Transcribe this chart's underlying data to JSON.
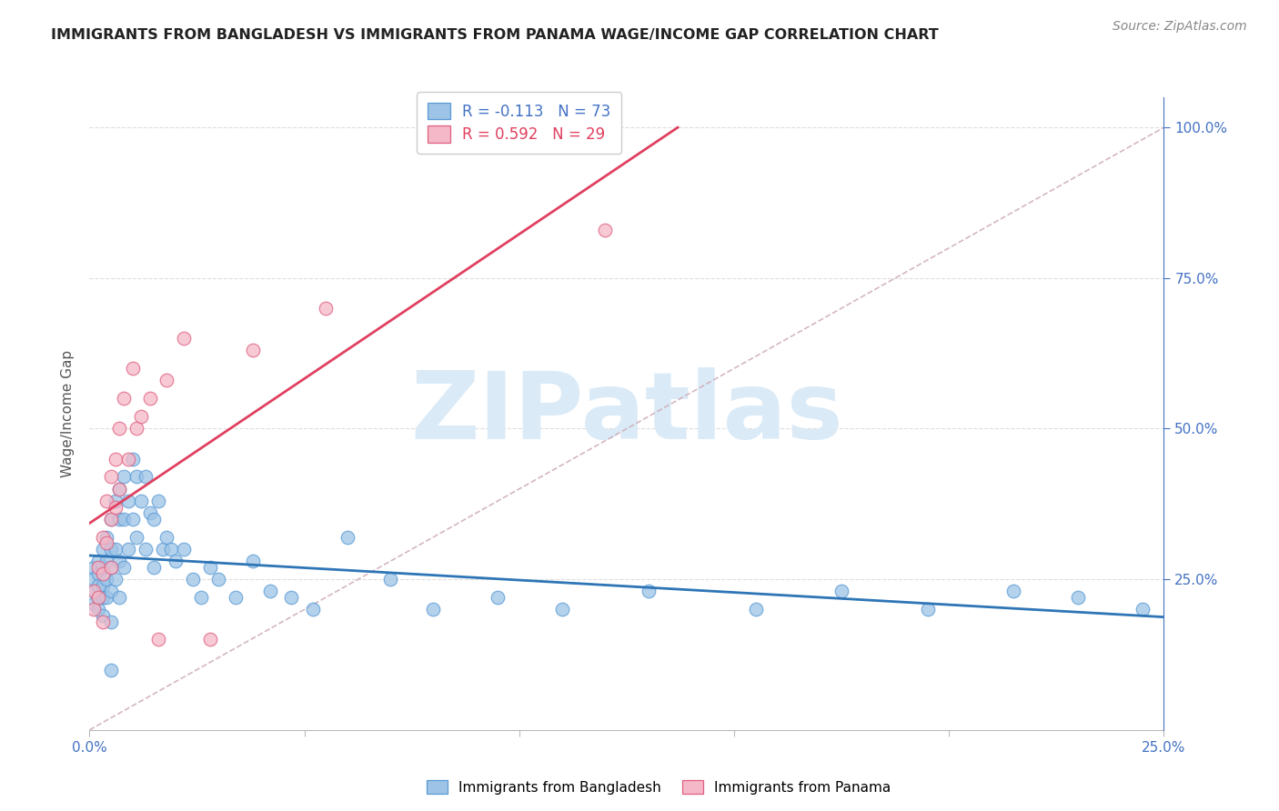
{
  "title": "IMMIGRANTS FROM BANGLADESH VS IMMIGRANTS FROM PANAMA WAGE/INCOME GAP CORRELATION CHART",
  "source": "Source: ZipAtlas.com",
  "ylabel": "Wage/Income Gap",
  "right_ytick_labels": [
    "100.0%",
    "75.0%",
    "50.0%",
    "25.0%"
  ],
  "right_ytick_values": [
    1.0,
    0.75,
    0.5,
    0.25
  ],
  "xlim": [
    0.0,
    0.25
  ],
  "ylim": [
    0.0,
    1.05
  ],
  "legend_bd": "R = -0.113   N = 73",
  "legend_pa": "R = 0.592   N = 29",
  "watermark": "ZIPatlas",
  "bg_color": "#ffffff",
  "grid_color": "#dddddd",
  "bangladesh_face": "#9dc3e6",
  "bangladesh_edge": "#5b9bd5",
  "panama_face": "#f4b8c8",
  "panama_edge": "#e06080",
  "trend_bd_color": "#2e75b6",
  "trend_pa_color": "#e04060",
  "ref_color": "#d0b0b8",
  "right_axis_color": "#4472c4",
  "watermark_color": "#daeaf7",
  "bd_x": [
    0.001,
    0.001,
    0.001,
    0.001,
    0.002,
    0.002,
    0.002,
    0.002,
    0.002,
    0.003,
    0.003,
    0.003,
    0.003,
    0.003,
    0.004,
    0.004,
    0.004,
    0.004,
    0.005,
    0.005,
    0.005,
    0.005,
    0.005,
    0.006,
    0.006,
    0.006,
    0.007,
    0.007,
    0.007,
    0.007,
    0.008,
    0.008,
    0.008,
    0.009,
    0.009,
    0.01,
    0.01,
    0.011,
    0.011,
    0.012,
    0.013,
    0.013,
    0.014,
    0.015,
    0.015,
    0.016,
    0.017,
    0.018,
    0.019,
    0.02,
    0.022,
    0.024,
    0.026,
    0.028,
    0.03,
    0.034,
    0.038,
    0.042,
    0.047,
    0.052,
    0.06,
    0.07,
    0.08,
    0.095,
    0.11,
    0.13,
    0.155,
    0.175,
    0.195,
    0.215,
    0.23,
    0.245,
    0.005
  ],
  "bd_y": [
    0.27,
    0.25,
    0.23,
    0.21,
    0.28,
    0.26,
    0.24,
    0.22,
    0.2,
    0.3,
    0.27,
    0.24,
    0.22,
    0.19,
    0.32,
    0.28,
    0.25,
    0.22,
    0.35,
    0.3,
    0.27,
    0.23,
    0.18,
    0.38,
    0.3,
    0.25,
    0.4,
    0.35,
    0.28,
    0.22,
    0.42,
    0.35,
    0.27,
    0.38,
    0.3,
    0.45,
    0.35,
    0.42,
    0.32,
    0.38,
    0.42,
    0.3,
    0.36,
    0.35,
    0.27,
    0.38,
    0.3,
    0.32,
    0.3,
    0.28,
    0.3,
    0.25,
    0.22,
    0.27,
    0.25,
    0.22,
    0.28,
    0.23,
    0.22,
    0.2,
    0.32,
    0.25,
    0.2,
    0.22,
    0.2,
    0.23,
    0.2,
    0.23,
    0.2,
    0.23,
    0.22,
    0.2,
    0.1
  ],
  "pa_x": [
    0.001,
    0.001,
    0.002,
    0.002,
    0.003,
    0.003,
    0.003,
    0.004,
    0.004,
    0.005,
    0.005,
    0.005,
    0.006,
    0.006,
    0.007,
    0.007,
    0.008,
    0.009,
    0.01,
    0.011,
    0.012,
    0.014,
    0.016,
    0.018,
    0.022,
    0.028,
    0.038,
    0.055,
    0.12
  ],
  "pa_y": [
    0.23,
    0.2,
    0.27,
    0.22,
    0.32,
    0.26,
    0.18,
    0.38,
    0.31,
    0.42,
    0.35,
    0.27,
    0.45,
    0.37,
    0.5,
    0.4,
    0.55,
    0.45,
    0.6,
    0.5,
    0.52,
    0.55,
    0.15,
    0.58,
    0.65,
    0.15,
    0.63,
    0.7,
    0.83
  ]
}
